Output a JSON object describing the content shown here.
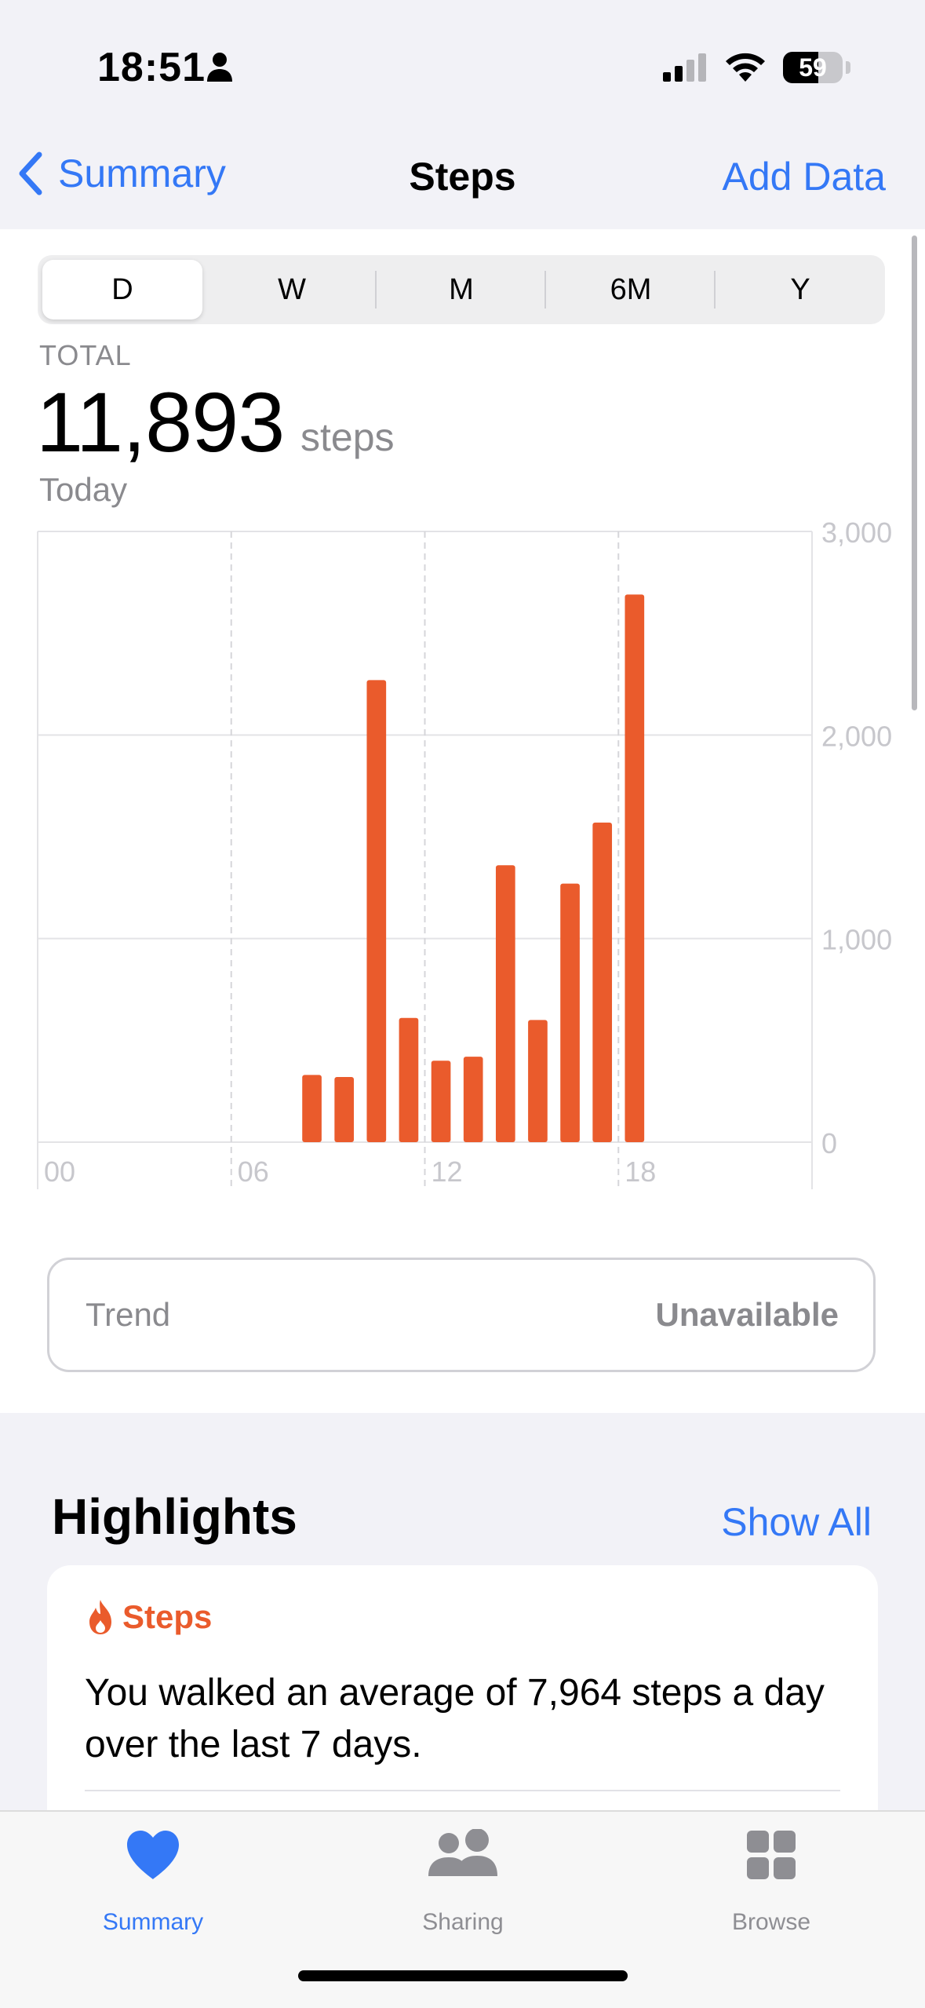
{
  "status_bar": {
    "time": "18:51",
    "battery_level": "59"
  },
  "nav": {
    "back_label": "Summary",
    "title": "Steps",
    "add_label": "Add Data"
  },
  "segments": [
    "D",
    "W",
    "M",
    "6M",
    "Y"
  ],
  "selected_segment": "D",
  "total": {
    "label": "TOTAL",
    "value": "11,893",
    "unit": "steps",
    "period": "Today"
  },
  "chart_data": {
    "type": "bar",
    "x_ticks": [
      "00",
      "06",
      "12",
      "18"
    ],
    "y_ticks": [
      "0",
      "1,000",
      "2,000",
      "3,000"
    ],
    "ylim": [
      0,
      3000
    ],
    "xlim": [
      0,
      24
    ],
    "hours": [
      8,
      9,
      10,
      11,
      12,
      13,
      14,
      15,
      16,
      17,
      18
    ],
    "values": [
      330,
      320,
      2270,
      610,
      400,
      420,
      1360,
      600,
      1270,
      1570,
      2690
    ],
    "bar_color": "#ea5b2c"
  },
  "trend": {
    "label": "Trend",
    "value": "Unavailable"
  },
  "highlights": {
    "title": "Highlights",
    "show_all": "Show All",
    "card": {
      "category": "Steps",
      "text": "You walked an average of 7,964 steps a day over the last 7 days."
    }
  },
  "tabbar": {
    "items": [
      {
        "label": "Summary",
        "active": true
      },
      {
        "label": "Sharing",
        "active": false
      },
      {
        "label": "Browse",
        "active": false
      }
    ]
  },
  "colors": {
    "accent": "#3478f6",
    "steps_orange": "#ea5b2c",
    "gray_text": "#8a8a8e"
  }
}
